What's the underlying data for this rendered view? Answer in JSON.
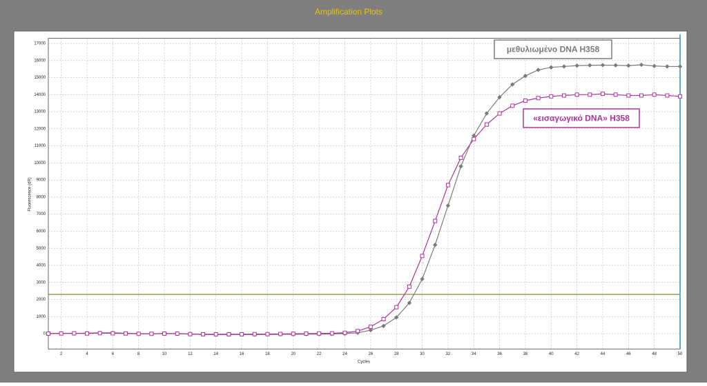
{
  "chart_data": {
    "type": "line",
    "title": "Amplification Plots",
    "x_label": "Cycles",
    "y_label": "Fluorescence (dR)",
    "x": [
      1,
      2,
      3,
      4,
      5,
      6,
      7,
      8,
      9,
      10,
      11,
      12,
      13,
      14,
      15,
      16,
      17,
      18,
      19,
      20,
      21,
      22,
      23,
      24,
      25,
      26,
      27,
      28,
      29,
      30,
      31,
      32,
      33,
      34,
      35,
      36,
      37,
      38,
      39,
      40,
      41,
      42,
      43,
      44,
      45,
      46,
      47,
      48,
      49,
      50
    ],
    "series": [
      {
        "name": "μεθυλιωμένο DNA H358",
        "color": "#7a7a7a",
        "marker": "diamond",
        "values": [
          0,
          20,
          10,
          30,
          40,
          50,
          20,
          0,
          -10,
          10,
          0,
          -20,
          -50,
          -60,
          -60,
          -50,
          -60,
          -50,
          -40,
          -40,
          -30,
          -30,
          -20,
          0,
          50,
          200,
          450,
          950,
          1800,
          3200,
          5200,
          7500,
          9800,
          11600,
          12900,
          13850,
          14600,
          15100,
          15450,
          15600,
          15650,
          15700,
          15720,
          15730,
          15720,
          15700,
          15750,
          15680,
          15650,
          15650
        ]
      },
      {
        "name": "«εισαγωγικό DNA» H358",
        "color": "#b0309a",
        "marker": "square",
        "values": [
          0,
          10,
          20,
          10,
          30,
          20,
          10,
          -10,
          -10,
          0,
          0,
          -30,
          -40,
          -40,
          -40,
          -40,
          -30,
          -30,
          -20,
          -10,
          0,
          10,
          20,
          50,
          150,
          400,
          850,
          1550,
          2750,
          4550,
          6600,
          8700,
          10300,
          11400,
          12250,
          12900,
          13350,
          13650,
          13800,
          13900,
          13950,
          14000,
          14000,
          14050,
          14000,
          13950,
          13950,
          14000,
          13950,
          13900
        ]
      }
    ],
    "xlim": [
      1,
      50
    ],
    "ylim": [
      -900,
      17300
    ],
    "xticks": [
      2,
      4,
      6,
      8,
      10,
      12,
      14,
      16,
      18,
      20,
      22,
      24,
      26,
      28,
      30,
      32,
      34,
      36,
      38,
      40,
      42,
      44,
      46,
      48,
      50
    ],
    "yticks": [
      0,
      1000,
      2000,
      3000,
      4000,
      5000,
      6000,
      7000,
      8000,
      9000,
      10000,
      11000,
      12000,
      13000,
      14000,
      15000,
      16000,
      17000
    ],
    "grid": true,
    "threshold": 2300,
    "vertical_line": 50
  }
}
